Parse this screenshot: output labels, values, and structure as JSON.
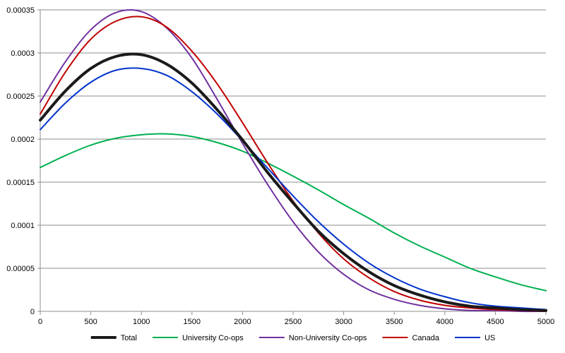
{
  "chart_data": {
    "type": "line",
    "title": "",
    "xlabel": "",
    "ylabel": "",
    "xlim": [
      0,
      5000
    ],
    "ylim": [
      0,
      0.00035
    ],
    "x_ticks": [
      "0",
      "500",
      "1000",
      "1500",
      "2000",
      "2500",
      "3000",
      "3500",
      "4000",
      "4500",
      "5000"
    ],
    "y_ticks": [
      "0",
      "0.00005",
      "0.0001",
      "0.00015",
      "0.0002",
      "0.00025",
      "0.0003",
      "0.00035"
    ],
    "grid": "horizontal",
    "legend_position": "bottom",
    "x": [
      0,
      250,
      500,
      750,
      1000,
      1250,
      1500,
      1750,
      2000,
      2250,
      2500,
      2750,
      3000,
      3250,
      3500,
      3750,
      4000,
      4250,
      4500,
      4750,
      5000
    ],
    "series": [
      {
        "name": "Total",
        "color": "#1a1a1a",
        "bold": true,
        "values": [
          0.000222,
          0.000256,
          0.000282,
          0.000296,
          0.000298,
          0.000287,
          0.000265,
          0.000234,
          0.000199,
          0.000161,
          0.000126,
          9.3e-05,
          6.7e-05,
          4.6e-05,
          3e-05,
          1.9e-05,
          1.1e-05,
          6e-06,
          4e-06,
          2e-06,
          1e-06
        ]
      },
      {
        "name": "University Co-ops",
        "color": "#00b050",
        "values": [
          0.000167,
          0.000181,
          0.000193,
          0.000201,
          0.000205,
          0.000206,
          0.000203,
          0.000196,
          0.000186,
          0.000172,
          0.000157,
          0.000141,
          0.000124,
          0.000108,
          9.1e-05,
          7.6e-05,
          6.3e-05,
          5e-05,
          4e-05,
          3.1e-05,
          2.4e-05
        ]
      },
      {
        "name": "Non-University Co-ops",
        "color": "#7030a0",
        "values": [
          0.000243,
          0.00029,
          0.000327,
          0.000347,
          0.000348,
          0.000329,
          0.000294,
          0.000246,
          0.000195,
          0.000147,
          0.000104,
          6.9e-05,
          4.3e-05,
          2.5e-05,
          1.4e-05,
          7e-06,
          3e-06,
          1e-06,
          1e-06,
          0,
          0
        ]
      },
      {
        "name": "Canada",
        "color": "#c00000",
        "values": [
          0.000229,
          0.000278,
          0.000316,
          0.000337,
          0.000342,
          0.00033,
          0.000302,
          0.000264,
          0.000219,
          0.000172,
          0.000128,
          9.1e-05,
          6.1e-05,
          3.9e-05,
          2.3e-05,
          1.3e-05,
          7e-06,
          4e-06,
          2e-06,
          1e-06,
          0
        ]
      },
      {
        "name": "US",
        "color": "#0033cc",
        "values": [
          0.000211,
          0.000242,
          0.000266,
          0.00028,
          0.000282,
          0.000274,
          0.000255,
          0.000229,
          0.000198,
          0.000166,
          0.000134,
          0.000104,
          7.8e-05,
          5.6e-05,
          3.9e-05,
          2.6e-05,
          1.7e-05,
          1e-05,
          6e-06,
          4e-06,
          2e-06
        ]
      }
    ]
  }
}
